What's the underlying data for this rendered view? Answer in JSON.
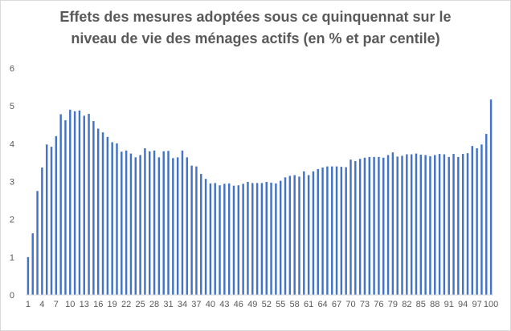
{
  "chart_data": {
    "type": "bar",
    "title_line1": "Effets des mesures adoptées sous ce quinquennat sur le",
    "title_line2": "niveau de vie des ménages actifs (en % et par centile)",
    "xlabel": "",
    "ylabel": "",
    "ylim": [
      0,
      6
    ],
    "yticks": [
      "0",
      "1",
      "2",
      "3",
      "4",
      "5",
      "6"
    ],
    "xtick_labels": [
      "1",
      "4",
      "7",
      "10",
      "13",
      "16",
      "19",
      "22",
      "25",
      "28",
      "31",
      "34",
      "37",
      "40",
      "43",
      "46",
      "49",
      "52",
      "55",
      "58",
      "61",
      "64",
      "67",
      "70",
      "73",
      "76",
      "79",
      "82",
      "85",
      "88",
      "91",
      "94",
      "97",
      "100"
    ],
    "categories": [
      1,
      2,
      3,
      4,
      5,
      6,
      7,
      8,
      9,
      10,
      11,
      12,
      13,
      14,
      15,
      16,
      17,
      18,
      19,
      20,
      21,
      22,
      23,
      24,
      25,
      26,
      27,
      28,
      29,
      30,
      31,
      32,
      33,
      34,
      35,
      36,
      37,
      38,
      39,
      40,
      41,
      42,
      43,
      44,
      45,
      46,
      47,
      48,
      49,
      50,
      51,
      52,
      53,
      54,
      55,
      56,
      57,
      58,
      59,
      60,
      61,
      62,
      63,
      64,
      65,
      66,
      67,
      68,
      69,
      70,
      71,
      72,
      73,
      74,
      75,
      76,
      77,
      78,
      79,
      80,
      81,
      82,
      83,
      84,
      85,
      86,
      87,
      88,
      89,
      90,
      91,
      92,
      93,
      94,
      95,
      96,
      97,
      98,
      99,
      100
    ],
    "values": [
      1.0,
      1.63,
      2.75,
      3.37,
      3.98,
      3.92,
      4.2,
      4.78,
      4.62,
      4.9,
      4.86,
      4.88,
      4.74,
      4.79,
      4.6,
      4.4,
      4.3,
      4.18,
      4.04,
      4.01,
      3.79,
      3.82,
      3.74,
      3.64,
      3.7,
      3.88,
      3.8,
      3.82,
      3.64,
      3.8,
      3.81,
      3.62,
      3.64,
      3.82,
      3.64,
      3.42,
      3.4,
      3.2,
      3.07,
      2.95,
      2.96,
      2.9,
      2.94,
      2.95,
      2.89,
      2.9,
      2.94,
      2.99,
      2.96,
      2.96,
      2.96,
      2.99,
      2.97,
      2.95,
      3.02,
      3.11,
      3.15,
      3.17,
      3.13,
      3.27,
      3.17,
      3.27,
      3.33,
      3.37,
      3.4,
      3.4,
      3.4,
      3.39,
      3.38,
      3.58,
      3.54,
      3.6,
      3.63,
      3.65,
      3.65,
      3.65,
      3.63,
      3.7,
      3.77,
      3.66,
      3.68,
      3.72,
      3.72,
      3.74,
      3.71,
      3.7,
      3.67,
      3.7,
      3.73,
      3.72,
      3.65,
      3.73,
      3.65,
      3.73,
      3.75,
      3.94,
      3.88,
      3.98,
      4.26,
      5.17
    ],
    "bar_color": "#4472c4",
    "axis_color": "#d9d9d9",
    "text_color": "#595959",
    "grid": false
  }
}
